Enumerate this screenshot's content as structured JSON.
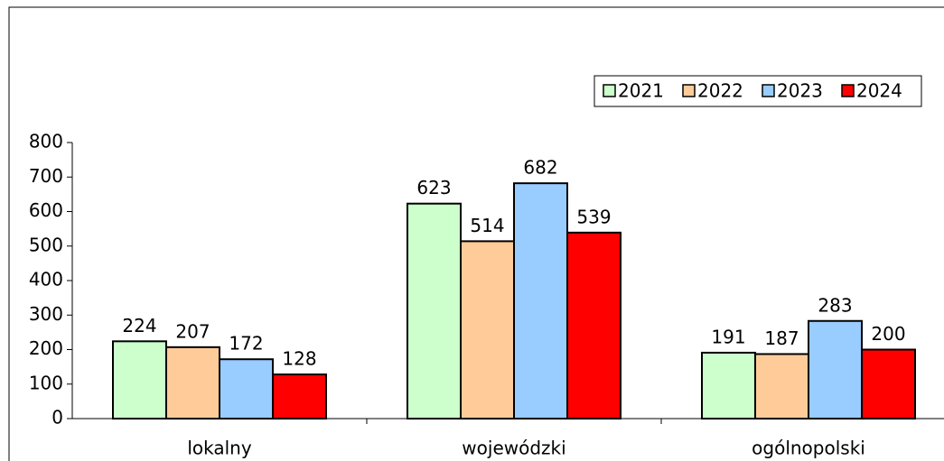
{
  "chart_data": {
    "type": "bar",
    "categories": [
      "lokalny",
      "wojewódzki",
      "ogólnopolski"
    ],
    "series": [
      {
        "name": "2021",
        "color": "#ccffcc",
        "values": [
          224,
          623,
          191
        ]
      },
      {
        "name": "2022",
        "color": "#ffcc99",
        "values": [
          207,
          514,
          187
        ]
      },
      {
        "name": "2023",
        "color": "#99ccff",
        "values": [
          172,
          682,
          283
        ]
      },
      {
        "name": "2024",
        "color": "#ff0000",
        "values": [
          128,
          539,
          200
        ]
      }
    ],
    "ylim": [
      0,
      800
    ],
    "yticks": [
      0,
      100,
      200,
      300,
      400,
      500,
      600,
      700,
      800
    ],
    "legend": "top-right"
  }
}
